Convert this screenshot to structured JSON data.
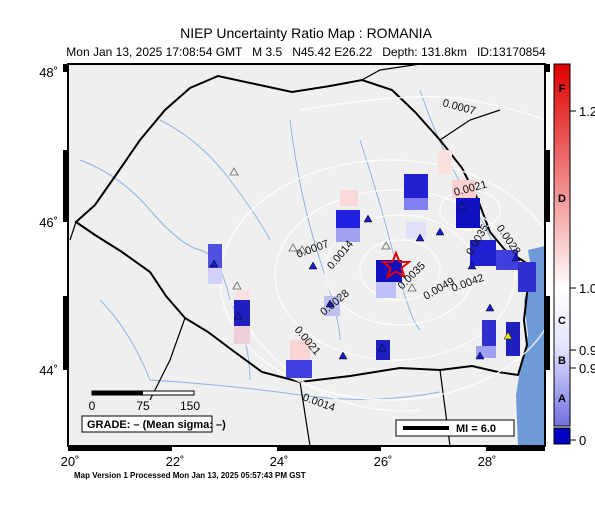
{
  "header": {
    "title": "NIEP Uncertainty Ratio Map : ROMANIA",
    "subtitle": "Mon Jan 13, 2025 17:08:54 GMT   M 3.5   N45.42 E26.22   Depth: 131.8km   ID:13170854"
  },
  "map": {
    "lat_labels": [
      "48˚",
      "46˚",
      "44˚"
    ],
    "lon_labels": [
      "20˚",
      "22˚",
      "24˚",
      "26˚",
      "28˚"
    ],
    "contour_labels": [
      "0.0007",
      "0.0021",
      "0.0007",
      "0.0014",
      "0.0028",
      "0.0035",
      "0.0049",
      "0.0042",
      "0.0035",
      "0.0028",
      "0.0021",
      "0.0014"
    ],
    "scale_labels": [
      "0",
      "75",
      "150"
    ],
    "grade": "GRADE: – (Mean sigma: –)",
    "mi": "MI = 6.0"
  },
  "colorbar": {
    "ticks": [
      "1.2",
      "1.0",
      "0.9",
      "0.9",
      "0"
    ],
    "grades": [
      "F",
      "D",
      "C",
      "B",
      "A"
    ]
  },
  "footer": "Map Version 1 Processed Mon Jan 13, 2025 05:57:43 PM GST"
}
